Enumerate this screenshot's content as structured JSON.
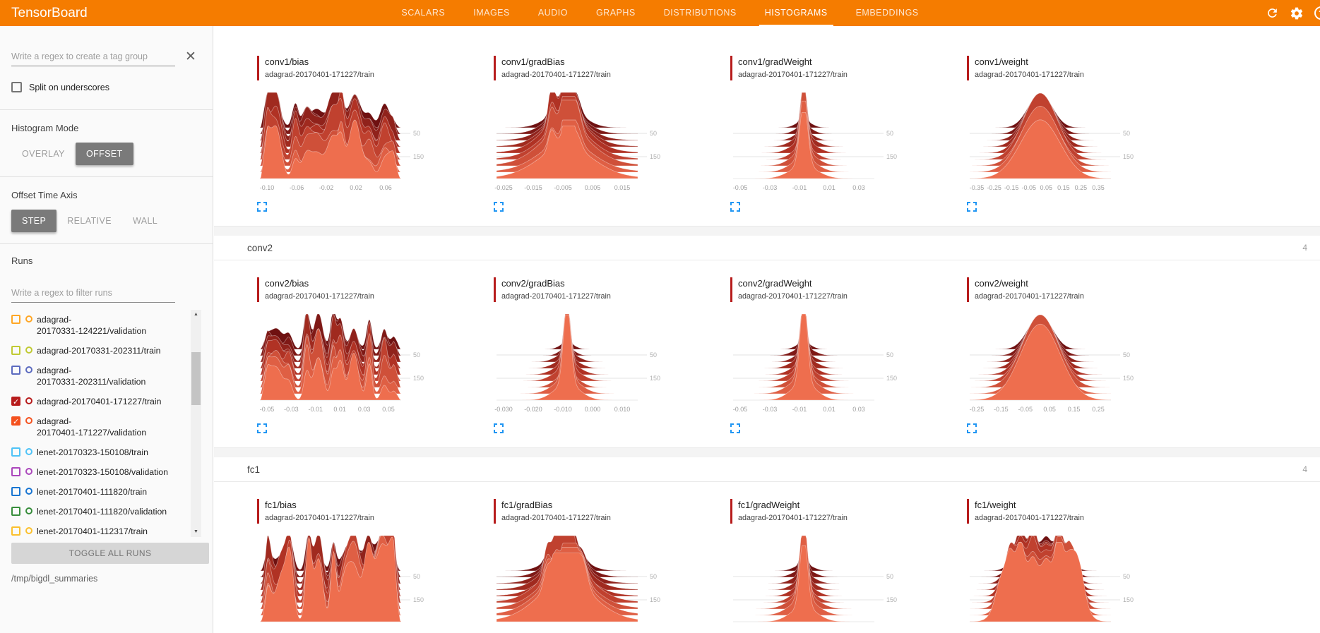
{
  "navbar": {
    "title": "TensorBoard",
    "bar_color": "#f57c00",
    "tabs": [
      {
        "label": "SCALARS",
        "active": false
      },
      {
        "label": "IMAGES",
        "active": false
      },
      {
        "label": "AUDIO",
        "active": false
      },
      {
        "label": "GRAPHS",
        "active": false
      },
      {
        "label": "DISTRIBUTIONS",
        "active": false
      },
      {
        "label": "HISTOGRAMS",
        "active": true
      },
      {
        "label": "EMBEDDINGS",
        "active": false
      }
    ],
    "icons": [
      "refresh",
      "settings",
      "help"
    ]
  },
  "sidebar": {
    "tag_filter": {
      "placeholder": "Write a regex to create a tag group"
    },
    "split_on_underscores": {
      "label": "Split on underscores",
      "checked": false
    },
    "histogram_mode": {
      "label": "Histogram Mode",
      "options": [
        "OVERLAY",
        "OFFSET"
      ],
      "selected": "OFFSET"
    },
    "offset_time_axis": {
      "label": "Offset Time Axis",
      "options": [
        "STEP",
        "RELATIVE",
        "WALL"
      ],
      "selected": "STEP"
    },
    "runs": {
      "label": "Runs",
      "filter_placeholder": "Write a regex to filter runs",
      "items": [
        {
          "name": "adagrad-20170331-124221/validation",
          "color": "#ffa726",
          "checked": false,
          "two_line": true
        },
        {
          "name": "adagrad-20170331-202311/train",
          "color": "#c0ca33",
          "checked": false,
          "two_line": false
        },
        {
          "name": "adagrad-20170331-202311/validation",
          "color": "#5c6bc0",
          "checked": false,
          "two_line": true
        },
        {
          "name": "adagrad-20170401-171227/train",
          "color": "#b71c1c",
          "checked": true,
          "two_line": false
        },
        {
          "name": "adagrad-20170401-171227/validation",
          "color": "#f4511e",
          "checked": true,
          "two_line": true
        },
        {
          "name": "lenet-20170323-150108/train",
          "color": "#4fc3f7",
          "checked": false,
          "two_line": false
        },
        {
          "name": "lenet-20170323-150108/validation",
          "color": "#ab47bc",
          "checked": false,
          "two_line": false
        },
        {
          "name": "lenet-20170401-111820/train",
          "color": "#1976d2",
          "checked": false,
          "two_line": false
        },
        {
          "name": "lenet-20170401-111820/validation",
          "color": "#388e3c",
          "checked": false,
          "two_line": false
        },
        {
          "name": "lenet-20170401-112317/train",
          "color": "#fbc02d",
          "checked": false,
          "two_line": false
        }
      ],
      "toggle_all_label": "TOGGLE ALL RUNS",
      "log_dir": "/tmp/bigdl_summaries"
    }
  },
  "main": {
    "chart_type": "offset ridgeline histogram",
    "selected_run_color": "#b71c1c",
    "histogram_layer_colors": {
      "back": "#6f1111",
      "mid": "#b03224",
      "front": "#ee6e4e"
    },
    "categories": [
      {
        "name": "conv1",
        "count": "",
        "header_visible": false,
        "charts": [
          {
            "title": "conv1/bias",
            "run": "adagrad-20170401-171227/train",
            "profile": "jagged",
            "x_ticks": [
              "-0.10",
              "-0.06",
              "-0.02",
              "0.02",
              "0.06"
            ],
            "y_ticks": [
              "50",
              "150"
            ]
          },
          {
            "title": "conv1/gradBias",
            "run": "adagrad-20170401-171227/train",
            "profile": "bumpyBell",
            "x_ticks": [
              "-0.025",
              "-0.015",
              "-0.005",
              "0.005",
              "0.015"
            ],
            "y_ticks": [
              "50",
              "150"
            ]
          },
          {
            "title": "conv1/gradWeight",
            "run": "adagrad-20170401-171227/train",
            "profile": "spike",
            "x_ticks": [
              "-0.05",
              "-0.03",
              "-0.01",
              "0.01",
              "0.03"
            ],
            "y_ticks": [
              "50",
              "150"
            ]
          },
          {
            "title": "conv1/weight",
            "run": "adagrad-20170401-171227/train",
            "profile": "bell",
            "x_ticks": [
              "-0.35",
              "-0.25",
              "-0.15",
              "-0.05",
              "0.05",
              "0.15",
              "0.25",
              "0.35"
            ],
            "y_ticks": [
              "50",
              "150"
            ]
          }
        ]
      },
      {
        "name": "conv2",
        "count": "4",
        "header_visible": true,
        "charts": [
          {
            "title": "conv2/bias",
            "run": "adagrad-20170401-171227/train",
            "profile": "jagged",
            "x_ticks": [
              "-0.05",
              "-0.03",
              "-0.01",
              "0.01",
              "0.03",
              "0.05"
            ],
            "y_ticks": [
              "50",
              "150"
            ]
          },
          {
            "title": "conv2/gradBias",
            "run": "adagrad-20170401-171227/train",
            "profile": "spike",
            "x_ticks": [
              "-0.030",
              "-0.020",
              "-0.010",
              "0.000",
              "0.010"
            ],
            "y_ticks": [
              "50",
              "150"
            ]
          },
          {
            "title": "conv2/gradWeight",
            "run": "adagrad-20170401-171227/train",
            "profile": "spike",
            "x_ticks": [
              "-0.05",
              "-0.03",
              "-0.01",
              "0.01",
              "0.03"
            ],
            "y_ticks": [
              "50",
              "150"
            ]
          },
          {
            "title": "conv2/weight",
            "run": "adagrad-20170401-171227/train",
            "profile": "bell",
            "x_ticks": [
              "-0.25",
              "-0.15",
              "-0.05",
              "0.05",
              "0.15",
              "0.25"
            ],
            "y_ticks": [
              "50",
              "150"
            ]
          }
        ]
      },
      {
        "name": "fc1",
        "count": "4",
        "header_visible": true,
        "charts": [
          {
            "title": "fc1/bias",
            "run": "adagrad-20170401-171227/train",
            "profile": "jagged",
            "x_ticks": [],
            "y_ticks": [
              "50",
              "150"
            ]
          },
          {
            "title": "fc1/gradBias",
            "run": "adagrad-20170401-171227/train",
            "profile": "bumpyBell",
            "x_ticks": [],
            "y_ticks": [
              "50",
              "150"
            ]
          },
          {
            "title": "fc1/gradWeight",
            "run": "adagrad-20170401-171227/train",
            "profile": "spike",
            "x_ticks": [],
            "y_ticks": [
              "50",
              "150"
            ]
          },
          {
            "title": "fc1/weight",
            "run": "adagrad-20170401-171227/train",
            "profile": "plateau",
            "x_ticks": [],
            "y_ticks": [
              "50",
              "150"
            ]
          }
        ]
      }
    ]
  }
}
